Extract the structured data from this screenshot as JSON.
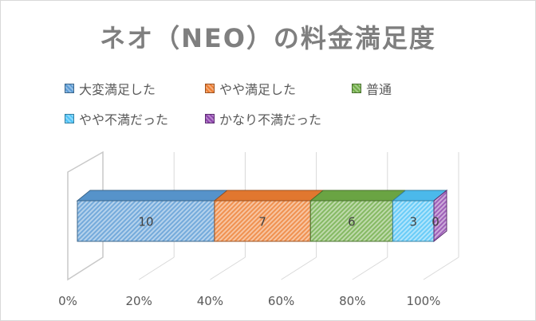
{
  "chart_data": {
    "type": "bar",
    "orientation": "horizontal",
    "stacking": "percent",
    "style": "3d",
    "title": "ネオ（NEO）の料金満足度",
    "xlabel": "",
    "ylabel": "",
    "xlim": [
      0,
      100
    ],
    "x_ticks": [
      "0%",
      "20%",
      "40%",
      "60%",
      "80%",
      "100%"
    ],
    "legend_position": "top",
    "grid": true,
    "categories": [
      ""
    ],
    "series": [
      {
        "name": "大変満足した",
        "values": [
          10
        ],
        "color": "#5b9bd5",
        "label": "10"
      },
      {
        "name": "やや満足した",
        "values": [
          7
        ],
        "color": "#ed7d31",
        "label": "7"
      },
      {
        "name": "普通",
        "values": [
          6
        ],
        "color": "#70ad47",
        "label": "6"
      },
      {
        "name": "やや不満だった",
        "values": [
          3
        ],
        "color": "#4fc3f7",
        "label": "3"
      },
      {
        "name": "かなり不満だった",
        "values": [
          0
        ],
        "color": "#8e44ad",
        "label": "0"
      }
    ]
  }
}
